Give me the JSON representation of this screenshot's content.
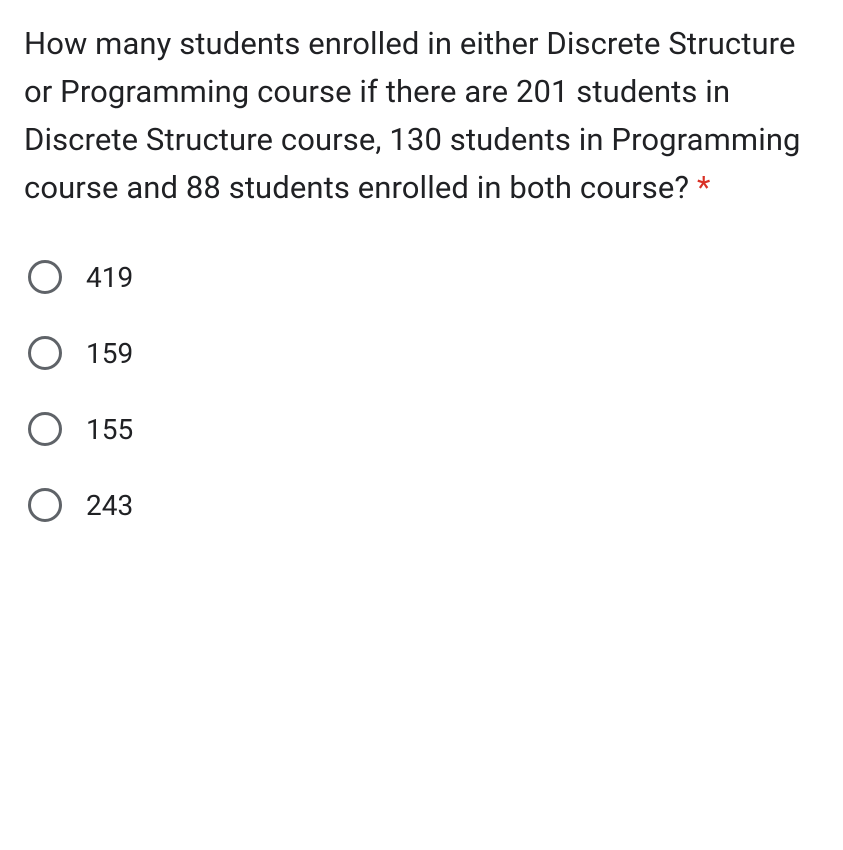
{
  "question": {
    "text": "How many students enrolled in either Discrete Structure or Programming course if there are 201 students in Discrete Structure course, 130 students in Programming course and 88 students enrolled in both course? ",
    "required_marker": "*",
    "text_color": "#202124",
    "asterisk_color": "#d93025",
    "font_size": 31
  },
  "options": [
    {
      "label": "419",
      "selected": false
    },
    {
      "label": "159",
      "selected": false
    },
    {
      "label": "155",
      "selected": false
    },
    {
      "label": "243",
      "selected": false
    }
  ],
  "styling": {
    "background_color": "#ffffff",
    "radio_border_color": "#5f6368",
    "option_text_color": "#202124",
    "option_font_size": 28,
    "radio_size": 34
  }
}
